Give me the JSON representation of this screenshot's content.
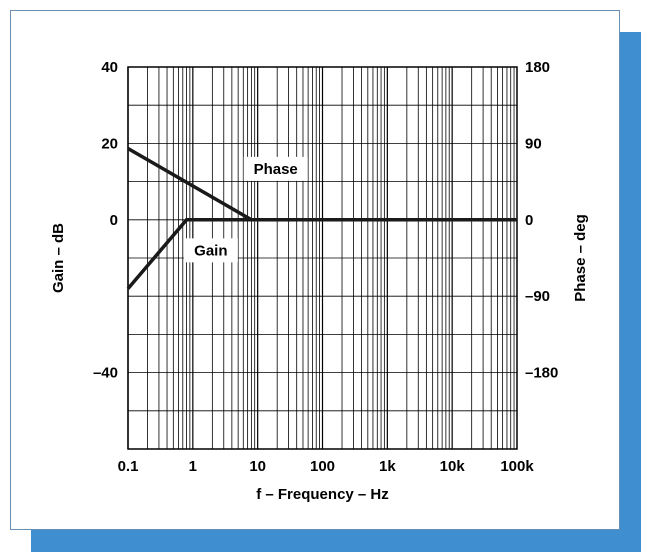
{
  "chart_data": {
    "type": "line",
    "xlabel": "f – Frequency – Hz",
    "ylabel_left": "Gain – dB",
    "ylabel_right": "Phase – deg",
    "x_scale": "log",
    "xlim": [
      0.1,
      100000
    ],
    "x_ticks": [
      0.1,
      1,
      10,
      100,
      1000,
      10000,
      100000
    ],
    "x_tick_labels": [
      "0.1",
      "1",
      "10",
      "100",
      "1k",
      "10k",
      "100k"
    ],
    "y_left_lim": [
      -60,
      40
    ],
    "y_left_ticks": [
      40,
      20,
      0,
      -40
    ],
    "y_left_tick_labels": [
      "40",
      "20",
      "0",
      "–40"
    ],
    "y_right_lim": [
      -270,
      180
    ],
    "y_right_ticks": [
      180,
      90,
      0,
      -90,
      -180
    ],
    "y_right_tick_labels": [
      "180",
      "90",
      "0",
      "–90",
      "–180"
    ],
    "grid": true,
    "series": [
      {
        "name": "Gain",
        "axis": "left",
        "x": [
          0.1,
          0.8,
          100000
        ],
        "y": [
          -18,
          0,
          0
        ]
      },
      {
        "name": "Phase",
        "axis": "right",
        "x": [
          0.1,
          8,
          100000
        ],
        "y": [
          84,
          0,
          0
        ]
      }
    ]
  }
}
